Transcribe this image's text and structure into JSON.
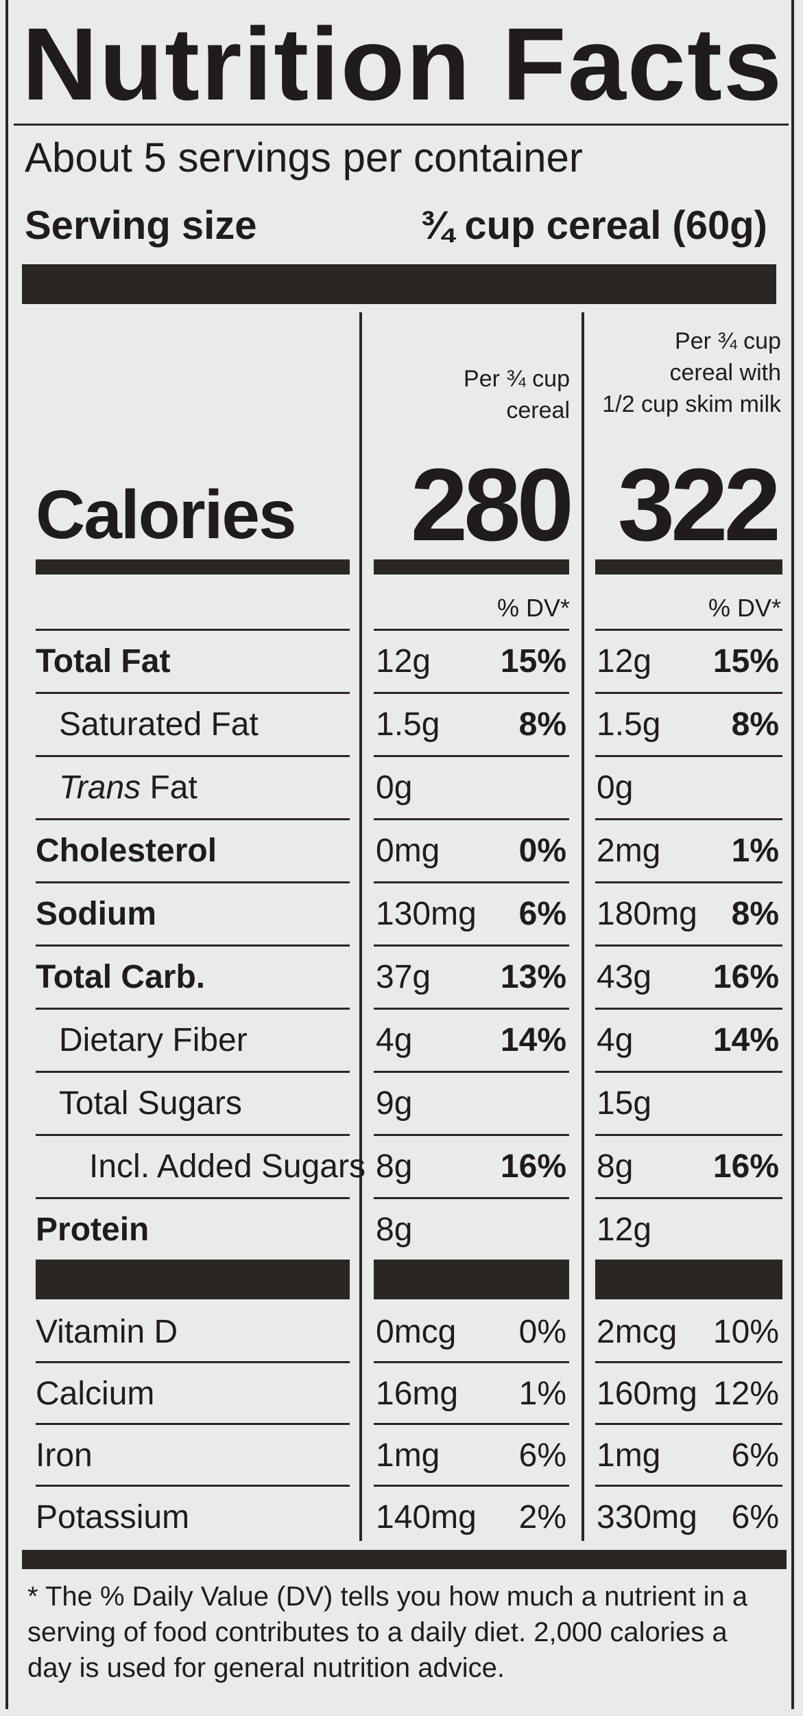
{
  "title": "Nutrition Facts",
  "servings_per_container": "About 5 servings per container",
  "serving_size_label": "Serving size",
  "serving_size_value": "¾ cup cereal (60g)",
  "col1_header": [
    "Per ¾ cup",
    "cereal"
  ],
  "col2_header": [
    "Per ¾ cup",
    "cereal with",
    "1/2 cup skim milk"
  ],
  "calories_label": "Calories",
  "calories_col1": "280",
  "calories_col2": "322",
  "dv_label": "% DV*",
  "rows": [
    {
      "label": "Total Fat",
      "bold": true,
      "indent": 0,
      "c1": "12g",
      "c1dv": "15%",
      "c2": "12g",
      "c2dv": "15%"
    },
    {
      "label": "Saturated Fat",
      "bold": false,
      "indent": 1,
      "c1": "1.5g",
      "c1dv": "8%",
      "c2": "1.5g",
      "c2dv": "8%"
    },
    {
      "label_italic": "Trans",
      "label": " Fat",
      "bold": false,
      "indent": 1,
      "c1": "0g",
      "c1dv": "",
      "c2": "0g",
      "c2dv": ""
    },
    {
      "label": "Cholesterol",
      "bold": true,
      "indent": 0,
      "c1": "0mg",
      "c1dv": "0%",
      "c2": "2mg",
      "c2dv": "1%"
    },
    {
      "label": "Sodium",
      "bold": true,
      "indent": 0,
      "c1": "130mg",
      "c1dv": "6%",
      "c2": "180mg",
      "c2dv": "8%"
    },
    {
      "label": "Total Carb.",
      "bold": true,
      "indent": 0,
      "c1": "37g",
      "c1dv": "13%",
      "c2": "43g",
      "c2dv": "16%"
    },
    {
      "label": "Dietary Fiber",
      "bold": false,
      "indent": 1,
      "c1": "4g",
      "c1dv": "14%",
      "c2": "4g",
      "c2dv": "14%"
    },
    {
      "label": "Total Sugars",
      "bold": false,
      "indent": 1,
      "c1": "9g",
      "c1dv": "",
      "c2": "15g",
      "c2dv": ""
    },
    {
      "label": "Incl. Added Sugars",
      "bold": false,
      "indent": 2,
      "c1": "8g",
      "c1dv": "16%",
      "c2": "8g",
      "c2dv": "16%"
    },
    {
      "label": "Protein",
      "bold": true,
      "indent": 0,
      "c1": "8g",
      "c1dv": "",
      "c2": "12g",
      "c2dv": ""
    }
  ],
  "vitamins": [
    {
      "label": "Vitamin D",
      "c1": "0mcg",
      "c1dv": "0%",
      "c2": "2mcg",
      "c2dv": "10%"
    },
    {
      "label": "Calcium",
      "c1": "16mg",
      "c1dv": "1%",
      "c2": "160mg",
      "c2dv": "12%"
    },
    {
      "label": "Iron",
      "c1": "1mg",
      "c1dv": "6%",
      "c2": "1mg",
      "c2dv": "6%"
    },
    {
      "label": "Potassium",
      "c1": "140mg",
      "c1dv": "2%",
      "c2": "330mg",
      "c2dv": "6%"
    }
  ],
  "footnote": "* The % Daily Value (DV) tells you how much a nutrient in a serving of food contributes to a daily diet. 2,000 calories a day is used for general nutrition advice."
}
